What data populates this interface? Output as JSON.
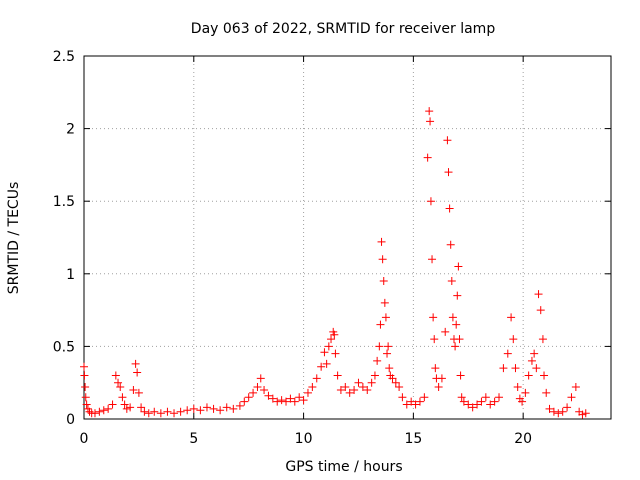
{
  "chart_data": {
    "type": "scatter",
    "title": "Day 063 of 2022, SRMTID for receiver lamp",
    "xlabel": "GPS time / hours",
    "ylabel": "SRMTID / TECUs",
    "xlim": [
      0,
      24
    ],
    "ylim": [
      0,
      2.5
    ],
    "x_ticks": [
      0,
      5,
      10,
      15,
      20
    ],
    "x_tick_labels": [
      "0",
      "5",
      "10",
      "15",
      "20"
    ],
    "y_ticks": [
      0,
      0.5,
      1,
      1.5,
      2,
      2.5
    ],
    "y_tick_labels": [
      "0",
      "0.5",
      "1",
      "1.5",
      "2",
      "2.5"
    ],
    "grid": true,
    "marker": "+",
    "series": [
      {
        "name": "SRMTID",
        "color": "#ff0000",
        "x": [
          0.0,
          0.02,
          0.05,
          0.08,
          0.12,
          0.18,
          0.25,
          0.35,
          0.5,
          0.7,
          0.9,
          1.1,
          1.3,
          1.45,
          1.55,
          1.65,
          1.75,
          1.85,
          1.95,
          2.1,
          2.25,
          2.35,
          2.42,
          2.5,
          2.6,
          2.75,
          2.95,
          3.2,
          3.5,
          3.8,
          4.1,
          4.4,
          4.7,
          5.0,
          5.3,
          5.6,
          5.9,
          6.2,
          6.5,
          6.8,
          7.1,
          7.3,
          7.5,
          7.7,
          7.9,
          8.05,
          8.2,
          8.4,
          8.6,
          8.8,
          9.0,
          9.2,
          9.4,
          9.6,
          9.8,
          10.0,
          10.2,
          10.4,
          10.6,
          10.8,
          10.95,
          11.05,
          11.15,
          11.25,
          11.35,
          11.4,
          11.45,
          11.55,
          11.7,
          11.9,
          12.1,
          12.3,
          12.5,
          12.7,
          12.9,
          13.1,
          13.25,
          13.35,
          13.45,
          13.5,
          13.55,
          13.6,
          13.65,
          13.7,
          13.75,
          13.8,
          13.85,
          13.9,
          13.95,
          14.05,
          14.2,
          14.35,
          14.5,
          14.7,
          14.9,
          15.1,
          15.3,
          15.5,
          15.65,
          15.72,
          15.76,
          15.8,
          15.85,
          15.9,
          15.95,
          16.0,
          16.05,
          16.15,
          16.3,
          16.45,
          16.55,
          16.6,
          16.65,
          16.7,
          16.75,
          16.8,
          16.85,
          16.9,
          16.95,
          17.0,
          17.05,
          17.1,
          17.15,
          17.2,
          17.3,
          17.5,
          17.7,
          17.9,
          18.1,
          18.3,
          18.5,
          18.7,
          18.9,
          19.1,
          19.3,
          19.45,
          19.55,
          19.65,
          19.75,
          19.85,
          19.95,
          20.1,
          20.25,
          20.4,
          20.5,
          20.6,
          20.7,
          20.8,
          20.9,
          20.95,
          21.05,
          21.2,
          21.4,
          21.6,
          21.8,
          22.0,
          22.2,
          22.4,
          22.55,
          22.7,
          22.85
        ],
        "y": [
          0.36,
          0.3,
          0.22,
          0.15,
          0.1,
          0.07,
          0.05,
          0.04,
          0.04,
          0.05,
          0.06,
          0.07,
          0.1,
          0.3,
          0.25,
          0.22,
          0.15,
          0.1,
          0.07,
          0.08,
          0.2,
          0.38,
          0.32,
          0.18,
          0.08,
          0.05,
          0.04,
          0.05,
          0.04,
          0.05,
          0.04,
          0.05,
          0.06,
          0.07,
          0.06,
          0.08,
          0.07,
          0.06,
          0.08,
          0.07,
          0.09,
          0.12,
          0.15,
          0.18,
          0.22,
          0.28,
          0.2,
          0.16,
          0.14,
          0.12,
          0.13,
          0.12,
          0.14,
          0.12,
          0.15,
          0.13,
          0.18,
          0.22,
          0.28,
          0.36,
          0.46,
          0.38,
          0.5,
          0.55,
          0.6,
          0.58,
          0.45,
          0.3,
          0.2,
          0.22,
          0.18,
          0.2,
          0.25,
          0.22,
          0.2,
          0.25,
          0.3,
          0.4,
          0.5,
          0.65,
          1.22,
          1.1,
          0.95,
          0.8,
          0.7,
          0.45,
          0.5,
          0.35,
          0.3,
          0.28,
          0.25,
          0.22,
          0.15,
          0.1,
          0.12,
          0.1,
          0.12,
          0.15,
          1.8,
          2.12,
          2.05,
          1.5,
          1.1,
          0.7,
          0.55,
          0.35,
          0.28,
          0.22,
          0.28,
          0.6,
          1.92,
          1.7,
          1.45,
          1.2,
          0.95,
          0.7,
          0.55,
          0.5,
          0.65,
          0.85,
          1.05,
          0.55,
          0.3,
          0.15,
          0.12,
          0.1,
          0.08,
          0.1,
          0.12,
          0.15,
          0.1,
          0.12,
          0.15,
          0.35,
          0.45,
          0.7,
          0.55,
          0.35,
          0.22,
          0.14,
          0.12,
          0.18,
          0.3,
          0.4,
          0.45,
          0.35,
          0.86,
          0.75,
          0.55,
          0.3,
          0.18,
          0.07,
          0.05,
          0.04,
          0.05,
          0.08,
          0.15,
          0.22,
          0.05,
          0.03,
          0.04
        ]
      }
    ]
  }
}
